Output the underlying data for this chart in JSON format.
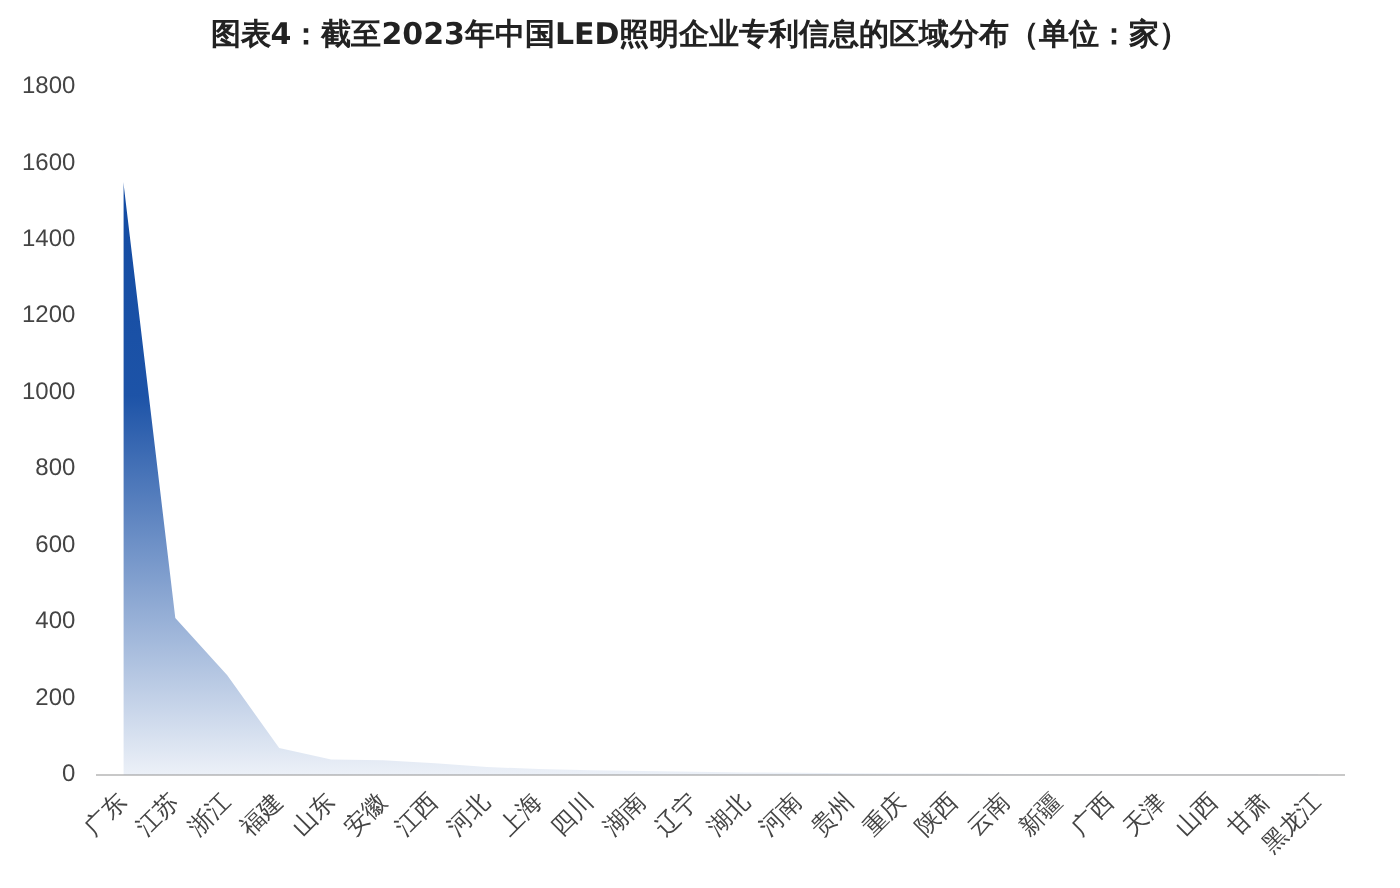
{
  "chart_data": {
    "type": "area",
    "title": "图表4：截至2023年中国LED照明企业专利信息的区域分布（单位：家）",
    "categories": [
      "广东",
      "江苏",
      "浙江",
      "福建",
      "山东",
      "安徽",
      "江西",
      "河北",
      "上海",
      "四川",
      "湖南",
      "辽宁",
      "湖北",
      "河南",
      "贵州",
      "重庆",
      "陕西",
      "云南",
      "新疆",
      "广西",
      "天津",
      "山西",
      "甘肃",
      "黑龙江"
    ],
    "series": [
      {
        "color": "#0d47a1",
        "values": [
          1550,
          410,
          260,
          70,
          40,
          38,
          30,
          20,
          15,
          12,
          10,
          8,
          6,
          5,
          4,
          3,
          3,
          2,
          2,
          1,
          1,
          1,
          1,
          1
        ]
      }
    ],
    "ylim": [
      0,
      1800
    ],
    "yticks": [
      0,
      200,
      400,
      600,
      800,
      1000,
      1200,
      1400,
      1600,
      1800
    ],
    "grid": false,
    "legend": false
  }
}
